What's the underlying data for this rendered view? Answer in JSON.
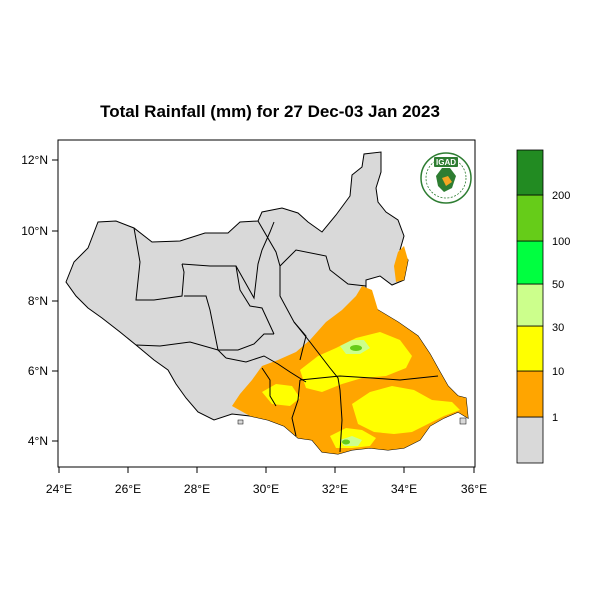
{
  "title": "Total Rainfall (mm) for 27 Dec-03 Jan 2023",
  "logo": {
    "text": "IGAD"
  },
  "axes": {
    "y_ticks": [
      "12°N",
      "10°N",
      "8°N",
      "6°N",
      "4°N"
    ],
    "x_ticks": [
      "24°E",
      "26°E",
      "28°E",
      "30°E",
      "32°E",
      "34°E",
      "36°E"
    ]
  },
  "legend": {
    "bins": [
      {
        "color": "#d9d9d9"
      },
      {
        "color": "#ffa500",
        "label": "1"
      },
      {
        "color": "#ffff00",
        "label": "10"
      },
      {
        "color": "#ccff8c",
        "label": "30"
      },
      {
        "color": "#00ff40",
        "label": "50"
      },
      {
        "color": "#66cc19",
        "label": "100"
      },
      {
        "color": "#228b22",
        "label": "200"
      }
    ]
  }
}
